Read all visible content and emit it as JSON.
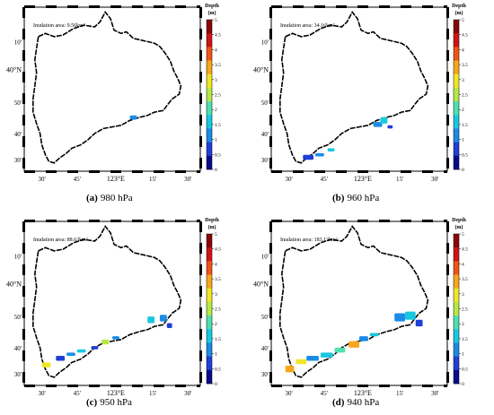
{
  "panels": [
    {
      "id": "a",
      "caption_letter": "(a)",
      "caption_text": "980 hPa",
      "area_prefix": "Inudation area: ",
      "area_value": "9.56km²",
      "lon_ticks": [
        "30'",
        "45'",
        "123°E",
        "15'",
        "30'"
      ],
      "lat_ticks": [
        "10'",
        "40°N",
        "50'",
        "40'",
        "30'"
      ],
      "colorbar_title_1": "Depth",
      "colorbar_title_2": "(m)",
      "colorbar_ticks": [
        "5",
        "4.5",
        "4",
        "3.5",
        "3",
        "2.5",
        "2",
        "1.5",
        "1",
        "0.5",
        "0"
      ]
    },
    {
      "id": "b",
      "caption_letter": "(b)",
      "caption_text": "960 hPa",
      "area_prefix": "Inudation area: ",
      "area_value": "34.16km²",
      "lon_ticks": [
        "30'",
        "45'",
        "123°E",
        "15'",
        "30'"
      ],
      "lat_ticks": [
        "10'",
        "40°N",
        "50'",
        "40'",
        "30'"
      ],
      "colorbar_title_1": "Depth",
      "colorbar_title_2": "(m)",
      "colorbar_ticks": [
        "5",
        "4.5",
        "4",
        "3.5",
        "3",
        "2.5",
        "2",
        "1.5",
        "1",
        "0.5",
        "0"
      ]
    },
    {
      "id": "c",
      "caption_letter": "(c)",
      "caption_text": "950 hPa",
      "area_prefix": "Inudation area: ",
      "area_value": "88.63km²",
      "lon_ticks": [
        "30'",
        "45'",
        "123°E",
        "15'",
        "30'"
      ],
      "lat_ticks": [
        "10'",
        "40°N",
        "50'",
        "40'",
        "30'"
      ],
      "colorbar_title_1": "Depth",
      "colorbar_title_2": "(m)",
      "colorbar_ticks": [
        "5",
        "4.5",
        "4",
        "3.5",
        "3",
        "2.5",
        "2",
        "1.5",
        "1",
        "0.5",
        "0"
      ]
    },
    {
      "id": "d",
      "caption_letter": "(d)",
      "caption_text": "940 hPa",
      "area_prefix": "Inudation area: ",
      "area_value": "183.13km²",
      "lon_ticks": [
        "30'",
        "45'",
        "123°E",
        "15'",
        "30'"
      ],
      "lat_ticks": [
        "10'",
        "40°N",
        "50'",
        "40'",
        "30'"
      ],
      "colorbar_title_1": "Depth",
      "colorbar_title_2": "(m)",
      "colorbar_ticks": [
        "5",
        "4.5",
        "4",
        "3.5",
        "3",
        "2.5",
        "2",
        "1.5",
        "1",
        "0.5",
        "0"
      ]
    }
  ],
  "colors": {
    "colormap": [
      "#0a0a8c",
      "#1f3fd6",
      "#1a8be6",
      "#19c8e0",
      "#4ee0b0",
      "#b6e845",
      "#f0e628",
      "#f6a71e",
      "#ef5418",
      "#cf1414",
      "#8a0606"
    ],
    "boundary": "#000000",
    "frame": "#000000"
  }
}
